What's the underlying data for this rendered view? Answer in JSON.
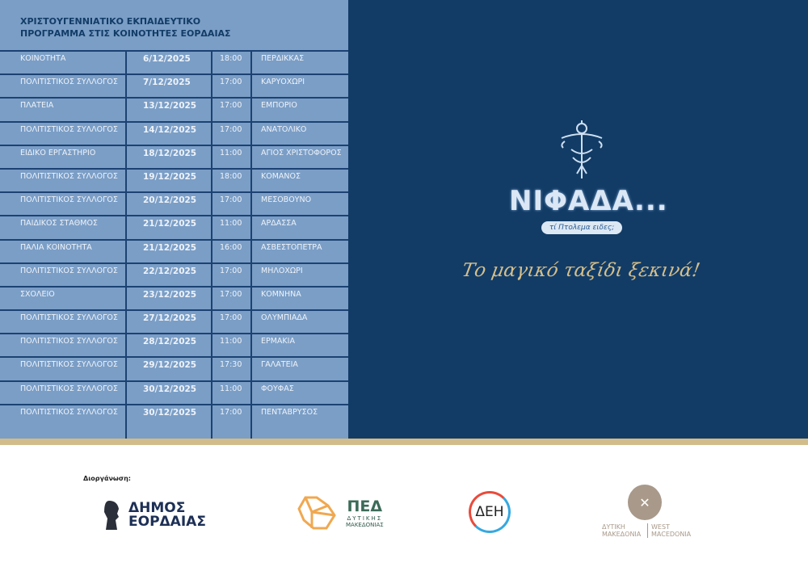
{
  "title": [
    "ΧΡΙΣΤΟΥΓΕΝΝΙΑΤΙΚΟ ΕΚΠΑΙΔΕΥΤΙΚΟ",
    "ΠΡΟΓΡΑΜΜΑ ΣΤΙΣ ΚΟΙΝΟΤΗΤΕΣ ΕΟΡΔΑΙΑΣ"
  ],
  "rows": [
    [
      "ΚΟΙΝΟΤΗΤΑ",
      "6/12/2025",
      "18:00",
      "ΠΕΡΔΙΚΚΑΣ"
    ],
    [
      "ΠΟΛΙΤΙΣΤΙΚΟΣ ΣΥΛΛΟΓΟΣ",
      "7/12/2025",
      "17:00",
      "ΚΑΡΥΟΧΩΡΙ"
    ],
    [
      "ΠΛΑΤΕΙΑ",
      "13/12/2025",
      "17:00",
      "ΕΜΠΟΡΙΟ"
    ],
    [
      "ΠΟΛΙΤΙΣΤΙΚΟΣ ΣΥΛΛΟΓΟΣ",
      "14/12/2025",
      "17:00",
      "ΑΝΑΤΟΛΙΚΟ"
    ],
    [
      "ΕΙΔΙΚΟ ΕΡΓΑΣΤΗΡΙΟ",
      "18/12/2025",
      "11:00",
      "ΑΓΙΟΣ ΧΡΙΣΤΟΦΟΡΟΣ"
    ],
    [
      "ΠΟΛΙΤΙΣΤΙΚΟΣ ΣΥΛΛΟΓΟΣ",
      "19/12/2025",
      "18:00",
      "ΚΟΜΑΝΟΣ"
    ],
    [
      "ΠΟΛΙΤΙΣΤΙΚΟΣ ΣΥΛΛΟΓΟΣ",
      "20/12/2025",
      "17:00",
      "ΜΕΣΟΒΟΥΝΟ"
    ],
    [
      "ΠΑΙΔΙΚΟΣ ΣΤΑΘΜΟΣ",
      "21/12/2025",
      "11:00",
      "ΑΡΔΑΣΣΑ"
    ],
    [
      "ΠΑΛΙΑ ΚΟΙΝΟΤΗΤΑ",
      "21/12/2025",
      "16:00",
      "ΑΣΒΕΣΤΟΠΕΤΡΑ"
    ],
    [
      "ΠΟΛΙΤΙΣΤΙΚΟΣ ΣΥΛΛΟΓΟΣ",
      "22/12/2025",
      "17:00",
      "ΜΗΛΟΧΩΡΙ"
    ],
    [
      "ΣΧΟΛΕΙΟ",
      "23/12/2025",
      "17:00",
      "ΚΟΜΝΗΝΑ"
    ],
    [
      "ΠΟΛΙΤΙΣΤΙΚΟΣ ΣΥΛΛΟΓΟΣ",
      "27/12/2025",
      "17:00",
      "ΟΛΥΜΠΙΑΔΑ"
    ],
    [
      "ΠΟΛΙΤΙΣΤΙΚΟΣ ΣΥΛΛΟΓΟΣ",
      "28/12/2025",
      "11:00",
      "ΕΡΜΑΚΙΑ"
    ],
    [
      "ΠΟΛΙΤΙΣΤΙΚΟΣ ΣΥΛΛΟΓΟΣ",
      "29/12/2025",
      "17:30",
      "ΓΑΛΑΤΕΙΑ"
    ],
    [
      "ΠΟΛΙΤΙΣΤΙΚΟΣ ΣΥΛΛΟΓΟΣ",
      "30/12/2025",
      "11:00",
      "ΦΟΥΦΑΣ"
    ],
    [
      "ΠΟΛΙΤΙΣΤΙΚΟΣ ΣΥΛΛΟΓΟΣ",
      "30/12/2025",
      "17:00",
      "ΠΕΝΤΑΒΡΥΣΟΣ"
    ]
  ],
  "brand": {
    "name": "ΝΙΦΑΔΑ...",
    "tagline": "τί Πτολεμα ειδες;",
    "slogan": "Το μαγικό ταξίδι ξεκινά!"
  },
  "footer": {
    "organizer_label": "Διοργάνωση:",
    "logos": {
      "dimos": [
        "ΔΗΜΟΣ",
        "ΕΟΡΔΑΙΑΣ"
      ],
      "ped": [
        "ΠΕΔ",
        "ΔΥΤΙΚΗΣ",
        "ΜΑΚΕΔΟΝΙΑΣ"
      ],
      "deh": "ΔΕΗ",
      "wm": [
        "ΔΥΤΙΚΗ ΜΑΚΕΔΟΝΙΑ",
        "WEST MACEDONIA"
      ]
    }
  },
  "colors": {
    "left_panel": "#7b9ec6",
    "right_panel": "#123c66",
    "gold": "#d2bc8a"
  }
}
